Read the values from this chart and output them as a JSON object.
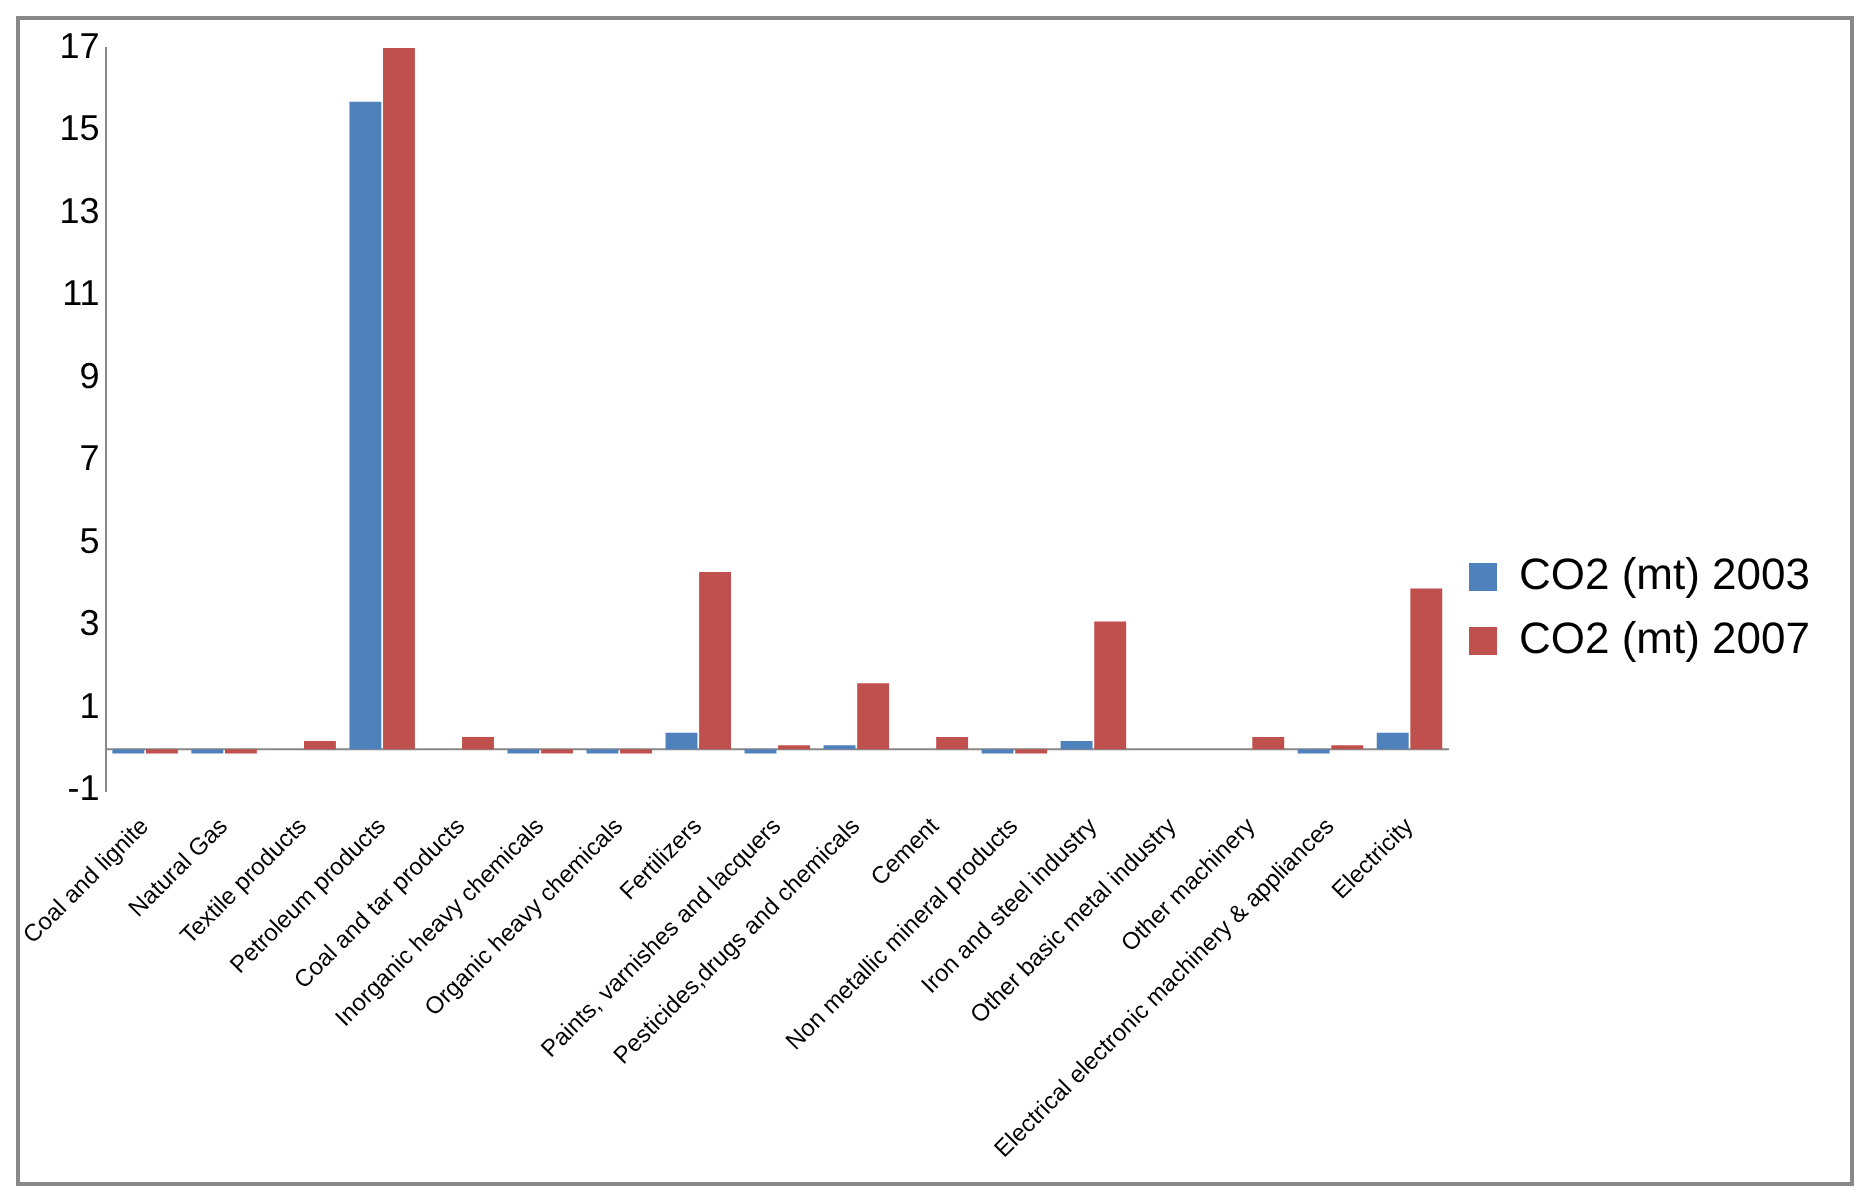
{
  "chart_data": {
    "type": "bar",
    "categories": [
      "Coal and lignite",
      "Natural Gas",
      "Textile products",
      "Petroleum products",
      "Coal and tar products",
      "Inorganic heavy chemicals",
      "Organic heavy chemicals",
      "Fertilizers",
      "Paints, varnishes and lacquers",
      "Pesticides,drugs and chemicals",
      "Cement",
      "Non metallic mineral products",
      "Iron and steel industry",
      "Other basic metal industry",
      "Other machinery",
      "Electrical electronic machinery & appliances",
      "Electricity"
    ],
    "series": [
      {
        "name": "CO2 (mt) 2003",
        "color": "#4f81bd",
        "values": [
          -0.1,
          -0.1,
          0,
          15.7,
          0,
          -0.1,
          -0.1,
          0.4,
          -0.1,
          0.1,
          0,
          -0.1,
          0.2,
          0,
          0,
          -0.1,
          0.4
        ]
      },
      {
        "name": "CO2 (mt) 2007",
        "color": "#c0504d",
        "values": [
          -0.1,
          -0.1,
          0.2,
          17,
          0.3,
          -0.1,
          -0.1,
          4.3,
          0.1,
          1.6,
          0.3,
          -0.1,
          3.1,
          0,
          0.3,
          0.1,
          3.9
        ]
      }
    ],
    "ylim": [
      -1,
      17
    ],
    "yticks": [
      -1,
      1,
      3,
      5,
      7,
      9,
      11,
      13,
      15,
      17
    ],
    "grid": false,
    "legend": "right"
  }
}
